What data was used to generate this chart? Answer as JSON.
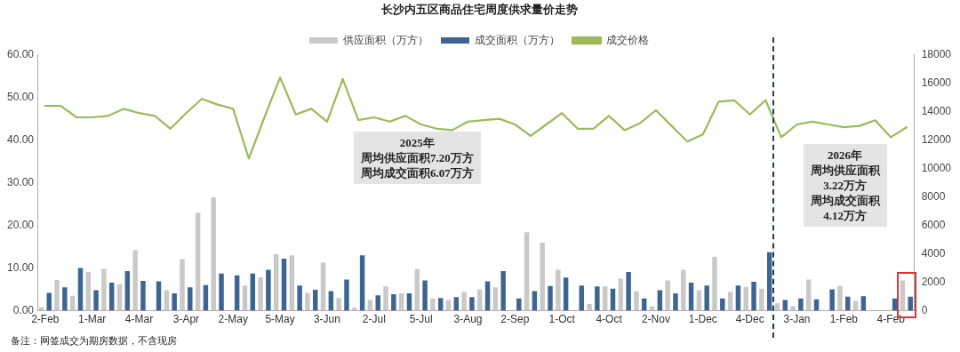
{
  "chart_data": {
    "type": "bar",
    "title": "长沙内五区商品住宅周度供求量价走势",
    "categories": [
      "2-Feb",
      null,
      null,
      "1-Mar",
      null,
      null,
      "4-Mar",
      null,
      null,
      "3-Apr",
      null,
      null,
      "2-May",
      null,
      null,
      "5-May",
      null,
      null,
      "3-Jun",
      null,
      null,
      "2-Jul",
      null,
      null,
      "5-Jul",
      null,
      null,
      "3-Aug",
      null,
      null,
      "2-Sep",
      null,
      null,
      "1-Oct",
      null,
      null,
      "4-Oct",
      null,
      null,
      "2-Nov",
      null,
      null,
      "1-Dec",
      null,
      null,
      "4-Dec",
      null,
      null,
      "3-Jan",
      null,
      null,
      "1-Feb",
      null,
      null,
      "4-Feb",
      null
    ],
    "series": [
      {
        "name": "供应面积（万方）",
        "color": "#c9c9c9",
        "values": [
          0.8,
          7.2,
          3.5,
          9.1,
          9.8,
          6.2,
          14.2,
          0,
          4.8,
          12.1,
          23.0,
          26.6,
          0,
          5.9,
          7.8,
          13.3,
          13.0,
          4.2,
          11.3,
          3.0,
          0.7,
          2.5,
          5.7,
          4.1,
          9.8,
          2.9,
          2.5,
          4.4,
          5.0,
          5.5,
          0,
          18.4,
          16.0,
          9.6,
          0,
          1.6,
          5.7,
          7.5,
          4.6,
          1.0,
          7.1,
          9.6,
          4.8,
          12.7,
          4.4,
          5.6,
          5.2,
          1.8,
          1.1,
          7.3,
          0,
          5.8,
          2.3,
          0,
          0,
          7.1
        ]
      },
      {
        "name": "成交面积（万方）",
        "color": "#3d6593",
        "values": [
          4.2,
          5.5,
          10.0,
          4.8,
          6.6,
          9.3,
          7.0,
          6.9,
          4.1,
          5.5,
          6.0,
          8.7,
          8.3,
          8.7,
          9.6,
          12.2,
          5.9,
          4.9,
          4.6,
          7.3,
          13.0,
          3.6,
          3.9,
          4.1,
          7.1,
          3.0,
          3.2,
          3.2,
          6.9,
          9.3,
          2.9,
          4.6,
          5.8,
          7.8,
          5.9,
          5.7,
          5.2,
          9.1,
          2.9,
          4.8,
          4.1,
          6.6,
          5.9,
          2.9,
          5.9,
          6.8,
          13.7,
          2.5,
          2.9,
          2.7,
          5.0,
          3.3,
          3.4,
          0,
          2.9,
          3.3
        ]
      },
      {
        "name": "成交价格",
        "type": "line",
        "axis": "y2",
        "color": "#9bbb59",
        "values": [
          14400,
          14400,
          13600,
          13600,
          13700,
          14200,
          13900,
          13700,
          12800,
          13900,
          14900,
          14500,
          14200,
          10700,
          13600,
          16400,
          13800,
          14200,
          13300,
          16300,
          13400,
          13600,
          13300,
          13700,
          13100,
          12800,
          12700,
          13300,
          13400,
          13500,
          13100,
          12300,
          13100,
          13900,
          12800,
          12800,
          13700,
          12700,
          13200,
          14100,
          13000,
          11900,
          12400,
          14700,
          14800,
          13800,
          14800,
          12200,
          13100,
          13300,
          13100,
          12900,
          13000,
          13400,
          12200,
          12900
        ]
      }
    ],
    "ylim": [
      0,
      60
    ],
    "yticks": [
      {
        "value": 0,
        "label": "0.00"
      },
      {
        "value": 10,
        "label": "10.00"
      },
      {
        "value": 20,
        "label": "20.00"
      },
      {
        "value": 30,
        "label": "30.00"
      },
      {
        "value": 40,
        "label": "40.00"
      },
      {
        "value": 50,
        "label": "50.00"
      },
      {
        "value": 60,
        "label": "60.00"
      }
    ],
    "y2lim": [
      0,
      18000
    ],
    "y2ticks": [
      0,
      2000,
      4000,
      6000,
      8000,
      10000,
      12000,
      14000,
      16000,
      18000
    ],
    "annotations": [
      "2025年",
      "周均供应面积7.20万方",
      "周均成交面积6.07万方",
      "2026年",
      "周均供应面积",
      "3.22万方",
      "周均成交面积",
      "4.12万方",
      "备注：网签成交为期房数据，不含现房"
    ],
    "legend": "top",
    "grid": false,
    "marker": "none"
  }
}
